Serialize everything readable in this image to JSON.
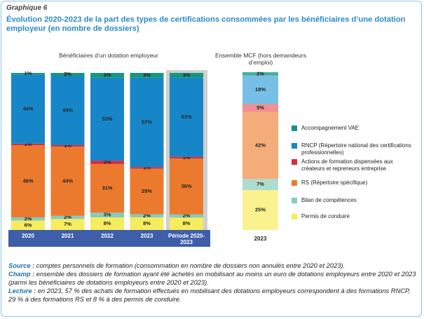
{
  "header": {
    "label": "Graphique 6",
    "title": "Évolution 2020-2023 de la part des types de certifications consommées par les bénéficiaires d’une dotation employeur (en nombre de dossiers)"
  },
  "chart_data": [
    {
      "type": "bar",
      "stacked": true,
      "subtitle": "Bénéficiaires d’un dotation employeur",
      "categories": [
        "2020",
        "2021",
        "2022",
        "2023",
        "Période 2020-2023"
      ],
      "series": [
        {
          "name": "Permis de conduire",
          "color": "#f6ec5e",
          "values": [
            6,
            7,
            8,
            8,
            8
          ],
          "value_labels": [
            "6%",
            "7%",
            "8%",
            "8%",
            "8%"
          ]
        },
        {
          "name": "Bilan de compétences",
          "color": "#86cbbd",
          "values": [
            2,
            2,
            3,
            2,
            2
          ],
          "value_labels": [
            "2%",
            "2%",
            "3%",
            "2%",
            "2%"
          ]
        },
        {
          "name": "RS (Répertoire spécifique)",
          "color": "#ec7a2e",
          "values": [
            46,
            44,
            31,
            29,
            36
          ],
          "value_labels": [
            "46%",
            "44%",
            "31%",
            "29%",
            "36%"
          ]
        },
        {
          "name": "Actions de formation dispensées aux créateurs et repreneurs entreprise",
          "color": "#dd2a3f",
          "values": [
            1,
            1,
            2,
            1,
            1
          ],
          "value_labels": [
            "1%",
            "1%",
            "2%",
            "1%",
            "1%"
          ]
        },
        {
          "name": "RNCP (Répertoire national des certifications professionnelles)",
          "color": "#1786c8",
          "values": [
            44,
            44,
            53,
            57,
            51
          ],
          "value_labels": [
            "44%",
            "44%",
            "53%",
            "57%",
            "51%"
          ]
        },
        {
          "name": "Accompagnement VAE",
          "color": "#16957f",
          "values": [
            1,
            2,
            3,
            3,
            3
          ],
          "value_labels": [
            "1%",
            "2%",
            "3%",
            "3%",
            "3%"
          ]
        }
      ]
    },
    {
      "type": "bar",
      "stacked": true,
      "subtitle": "Ensemble MCF (hors demandeurs d’emploi)",
      "categories": [
        "2023"
      ],
      "series": [
        {
          "color": "#faf28f",
          "values": [
            25
          ],
          "value_labels": [
            "25%"
          ]
        },
        {
          "color": "#aedccf",
          "values": [
            7
          ],
          "value_labels": [
            "7%"
          ]
        },
        {
          "color": "#f4ac7a",
          "values": [
            42
          ],
          "value_labels": [
            "42%"
          ]
        },
        {
          "color": "#f09090",
          "values": [
            5
          ],
          "value_labels": [
            "5%"
          ]
        },
        {
          "color": "#78bfe7",
          "values": [
            18
          ],
          "value_labels": [
            "18%"
          ]
        },
        {
          "color": "#42b196",
          "values": [
            2
          ],
          "value_labels": [
            "2%"
          ]
        }
      ]
    }
  ],
  "notes": [
    {
      "label": "Source :",
      "text": "comptes personnels de formation (consommation en nombre de dossiers non annulés entre 2020 et 2023)."
    },
    {
      "label": "Champ :",
      "text": "ensemble des dossiers de formation ayant été achetés en mobilisant au moins un euro de dotations employeurs entre 2020 et 2023 (parmi les bénéficiaires de dotations employeurs entre 2020 et 2023)."
    },
    {
      "label": "Lecture :",
      "text": "en 2023, 57 % des achats de formation effectués en mobilisant des dotations employeurs correspondent à des formations RNCP, 29 % à des formations RS et 8 % à des permis de conduire."
    }
  ]
}
